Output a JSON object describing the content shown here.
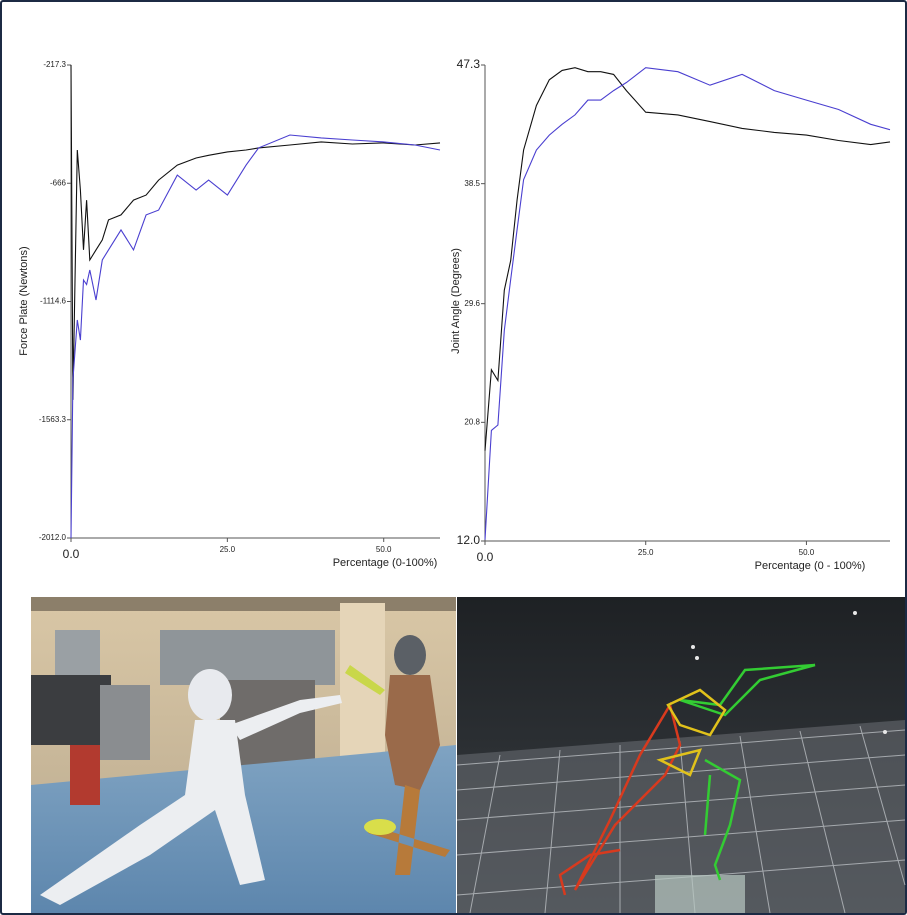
{
  "chart_data": [
    {
      "type": "line",
      "xlabel": "Percentage (0-100%)",
      "ylabel": "Force Plate (Newtons)",
      "x": [
        0,
        0.3,
        1,
        1.5,
        2,
        2.5,
        3,
        4,
        5,
        6,
        8,
        10,
        12,
        14,
        17,
        20,
        22,
        25,
        28,
        30,
        35,
        40,
        45,
        50,
        55,
        59
      ],
      "series": [
        {
          "color": "#111111",
          "values": [
            -217,
            -1488,
            -540,
            -692,
            -919,
            -730,
            -957,
            -919,
            -881,
            -805,
            -786,
            -730,
            -711,
            -654,
            -597,
            -570,
            -560,
            -547,
            -540,
            -532,
            -521,
            -509,
            -517,
            -513,
            -521,
            -513
          ]
        },
        {
          "color": "#4a3fd0",
          "values": [
            -2012,
            -1412,
            -1185,
            -1261,
            -1033,
            -1050,
            -995,
            -1109,
            -957,
            -919,
            -843,
            -919,
            -786,
            -768,
            -635,
            -692,
            -654,
            -711,
            -597,
            -532,
            -483,
            -494,
            -502,
            -509,
            -521,
            -540
          ]
        }
      ],
      "xlim": [
        0,
        59
      ],
      "ylim": [
        -2012,
        -217.3
      ],
      "xticks": [
        {
          "value": 0,
          "label": "0.0"
        },
        {
          "value": 25,
          "label": "25.0"
        },
        {
          "value": 50,
          "label": "50.0"
        }
      ],
      "yticks": [
        -217.3,
        -666.0,
        -1114.6,
        -1563.3,
        {
          "value": -2012,
          "label": "-2012.0"
        }
      ]
    },
    {
      "type": "line",
      "xlabel": "Percentage (0 - 100%)",
      "ylabel": "Joint Angle (Degrees)",
      "x": [
        0,
        1,
        2,
        3,
        4,
        5,
        6,
        8,
        10,
        12,
        14,
        16,
        18,
        20,
        22,
        25,
        30,
        35,
        40,
        45,
        50,
        55,
        60,
        63
      ],
      "series": [
        {
          "color": "#111111",
          "values": [
            18.7,
            24.7,
            23.9,
            30.6,
            32.8,
            37.3,
            41.0,
            44.3,
            46.2,
            46.9,
            47.1,
            46.8,
            46.8,
            46.6,
            45.4,
            43.8,
            43.6,
            43.1,
            42.6,
            42.3,
            42.1,
            41.7,
            41.4,
            41.6
          ]
        },
        {
          "color": "#4a3fd0",
          "values": [
            12.1,
            20.2,
            20.6,
            27.6,
            31.4,
            35.1,
            38.8,
            41.0,
            42.1,
            42.9,
            43.6,
            44.7,
            44.7,
            45.4,
            46.0,
            47.1,
            46.8,
            45.8,
            46.6,
            45.4,
            44.7,
            44.0,
            42.9,
            42.5
          ]
        }
      ],
      "xlim": [
        0,
        63
      ],
      "ylim": [
        12,
        47.3
      ],
      "xticks": [
        {
          "value": 0,
          "label": "0.0"
        },
        {
          "value": 25,
          "label": "25.0"
        },
        {
          "value": 50,
          "label": "50.0"
        }
      ],
      "yticks": [
        47.3,
        38.5,
        29.6,
        20.8,
        {
          "value": 12,
          "label": "12.0"
        }
      ]
    }
  ]
}
